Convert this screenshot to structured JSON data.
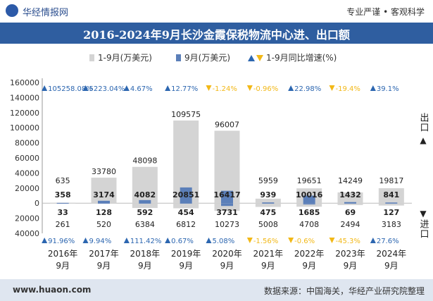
{
  "header": {
    "brand": "华经情报网",
    "slogan": "专业严谨 • 客观科学"
  },
  "title": "2016-2024年9月长沙金霞保税物流中心进、出口额",
  "legend": {
    "cumulative": "1-9月(万美元)",
    "monthly": "9月(万美元)",
    "growth": "1-9月同比增速(%)"
  },
  "side_labels": {
    "export": "出口",
    "import": "进口"
  },
  "footer": {
    "website": "www.huaon.com",
    "source": "数据来源：中国海关，华经产业研究院整理"
  },
  "chart_data": {
    "type": "bar",
    "title": "2016-2024年9月长沙金霞保税物流中心进、出口额",
    "categories": [
      "2016年\n9月",
      "2017年\n9月",
      "2018年\n9月",
      "2019年\n9月",
      "2020年\n9月",
      "2021年\n9月",
      "2022年\n9月",
      "2023年\n9月",
      "2024年\n9月"
    ],
    "ylim": [
      -40000,
      160000
    ],
    "yticks": [
      -40000,
      -20000,
      0,
      20000,
      40000,
      60000,
      80000,
      100000,
      120000,
      140000,
      160000
    ],
    "ytick_labels": [
      "40000",
      "20000",
      "0",
      "20000",
      "40000",
      "60000",
      "80000",
      "100000",
      "120000",
      "140000",
      "160000"
    ],
    "colors": {
      "cumulative": "#d4d4d4",
      "monthly": "#5b7fb9",
      "up": "#2c66b0",
      "down": "#f2b817"
    },
    "export": {
      "cumulative": [
        635,
        33780,
        48098,
        109575,
        96007,
        5959,
        19651,
        14249,
        19817
      ],
      "monthly": [
        358,
        3174,
        4082,
        20851,
        16417,
        939,
        10016,
        1432,
        841
      ],
      "growth_labels": [
        "105258.08%",
        "5223.04%",
        "4.67%",
        "12.77%",
        "-1.24%",
        "-0.96%",
        "22.98%",
        "-19.4%",
        "39.1%"
      ],
      "growth_direction": [
        "up",
        "up",
        "up",
        "up",
        "down",
        "down",
        "up",
        "down",
        "up"
      ]
    },
    "import": {
      "cumulative": [
        261,
        520,
        6384,
        6812,
        10273,
        5008,
        4708,
        2494,
        3183
      ],
      "monthly": [
        33,
        128,
        592,
        454,
        3731,
        475,
        1685,
        69,
        127
      ],
      "growth_labels": [
        "91.96%",
        "9.94%",
        "111.42%",
        "0.67%",
        "5.08%",
        "-1.56%",
        "-0.6%",
        "-45.3%",
        "27.6%"
      ],
      "growth_direction": [
        "up",
        "up",
        "up",
        "up",
        "up",
        "down",
        "down",
        "down",
        "up"
      ]
    }
  }
}
